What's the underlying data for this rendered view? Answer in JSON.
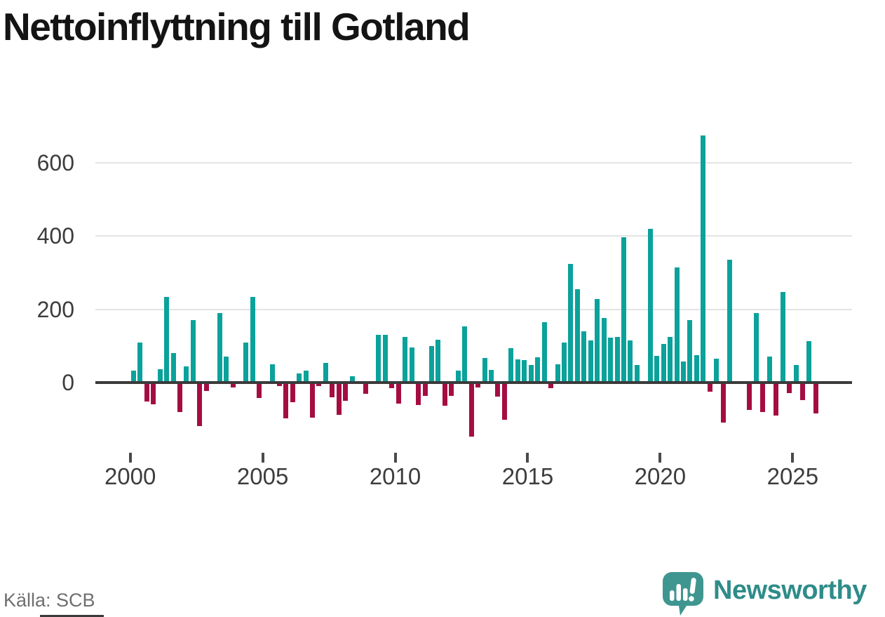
{
  "title": "Nettoinflyttning till Gotland",
  "source": "Källa: SCB",
  "logo": {
    "text": "Newsworthy",
    "icon": "speech-bubble-barchart-icon"
  },
  "colors": {
    "positive_bar": "#0aa29b",
    "negative_bar": "#a50d42",
    "logo_teal": "#3f9690",
    "logo_text_teal": "#2e8c89",
    "gridline": "#e4e4e4",
    "zero_line": "#3a3a3a",
    "axis_text": "#3d3d3d",
    "source_text": "#6f6f6f",
    "title_text": "#141414"
  },
  "chart_data": {
    "type": "bar",
    "title": "Nettoinflyttning till Gotland",
    "xlabel": "",
    "ylabel": "",
    "frequency": "quarterly",
    "grid": "horizontal",
    "ylim": [
      -160,
      700
    ],
    "y_ticks": [
      0,
      200,
      400,
      600
    ],
    "y_tick_labels": [
      "0",
      "200",
      "400",
      "600"
    ],
    "x_tick_labels": [
      "2000",
      "2005",
      "2010",
      "2015",
      "2020",
      "2025"
    ],
    "series": [
      {
        "year": 2000,
        "values": [
          32,
          110,
          -52,
          -60
        ]
      },
      {
        "year": 2001,
        "values": [
          36,
          234,
          80,
          -81
        ]
      },
      {
        "year": 2002,
        "values": [
          45,
          170,
          -118,
          -23
        ]
      },
      {
        "year": 2003,
        "values": [
          0,
          190,
          70,
          -13
        ]
      },
      {
        "year": 2004,
        "values": [
          0,
          110,
          234,
          -42
        ]
      },
      {
        "year": 2005,
        "values": [
          0,
          50,
          -10,
          -98
        ]
      },
      {
        "year": 2006,
        "values": [
          -54,
          25,
          32,
          -96
        ]
      },
      {
        "year": 2007,
        "values": [
          -10,
          53,
          -41,
          -89
        ]
      },
      {
        "year": 2008,
        "values": [
          -50,
          17,
          0,
          -30
        ]
      },
      {
        "year": 2009,
        "values": [
          0,
          130,
          130,
          -15
        ]
      },
      {
        "year": 2010,
        "values": [
          -58,
          124,
          96,
          -61
        ]
      },
      {
        "year": 2011,
        "values": [
          -37,
          100,
          117,
          -64
        ]
      },
      {
        "year": 2012,
        "values": [
          -37,
          33,
          154,
          -148
        ]
      },
      {
        "year": 2013,
        "values": [
          -13,
          67,
          35,
          -38
        ]
      },
      {
        "year": 2014,
        "values": [
          -102,
          94,
          63,
          61
        ]
      },
      {
        "year": 2015,
        "values": [
          48,
          69,
          165,
          -15
        ]
      },
      {
        "year": 2016,
        "values": [
          50,
          110,
          325,
          255
        ]
      },
      {
        "year": 2017,
        "values": [
          140,
          115,
          228,
          177
        ]
      },
      {
        "year": 2018,
        "values": [
          122,
          124,
          397,
          115
        ]
      },
      {
        "year": 2019,
        "values": [
          48,
          0,
          420,
          72
        ]
      },
      {
        "year": 2020,
        "values": [
          105,
          125,
          315,
          58
        ]
      },
      {
        "year": 2021,
        "values": [
          170,
          75,
          675,
          -25
        ]
      },
      {
        "year": 2022,
        "values": [
          65,
          -110,
          335,
          0
        ]
      },
      {
        "year": 2023,
        "values": [
          0,
          -75,
          190,
          -80
        ]
      },
      {
        "year": 2024,
        "values": [
          70,
          -90,
          248,
          -28
        ]
      },
      {
        "year": 2025,
        "values": [
          47,
          -47,
          113,
          -85
        ]
      }
    ]
  }
}
